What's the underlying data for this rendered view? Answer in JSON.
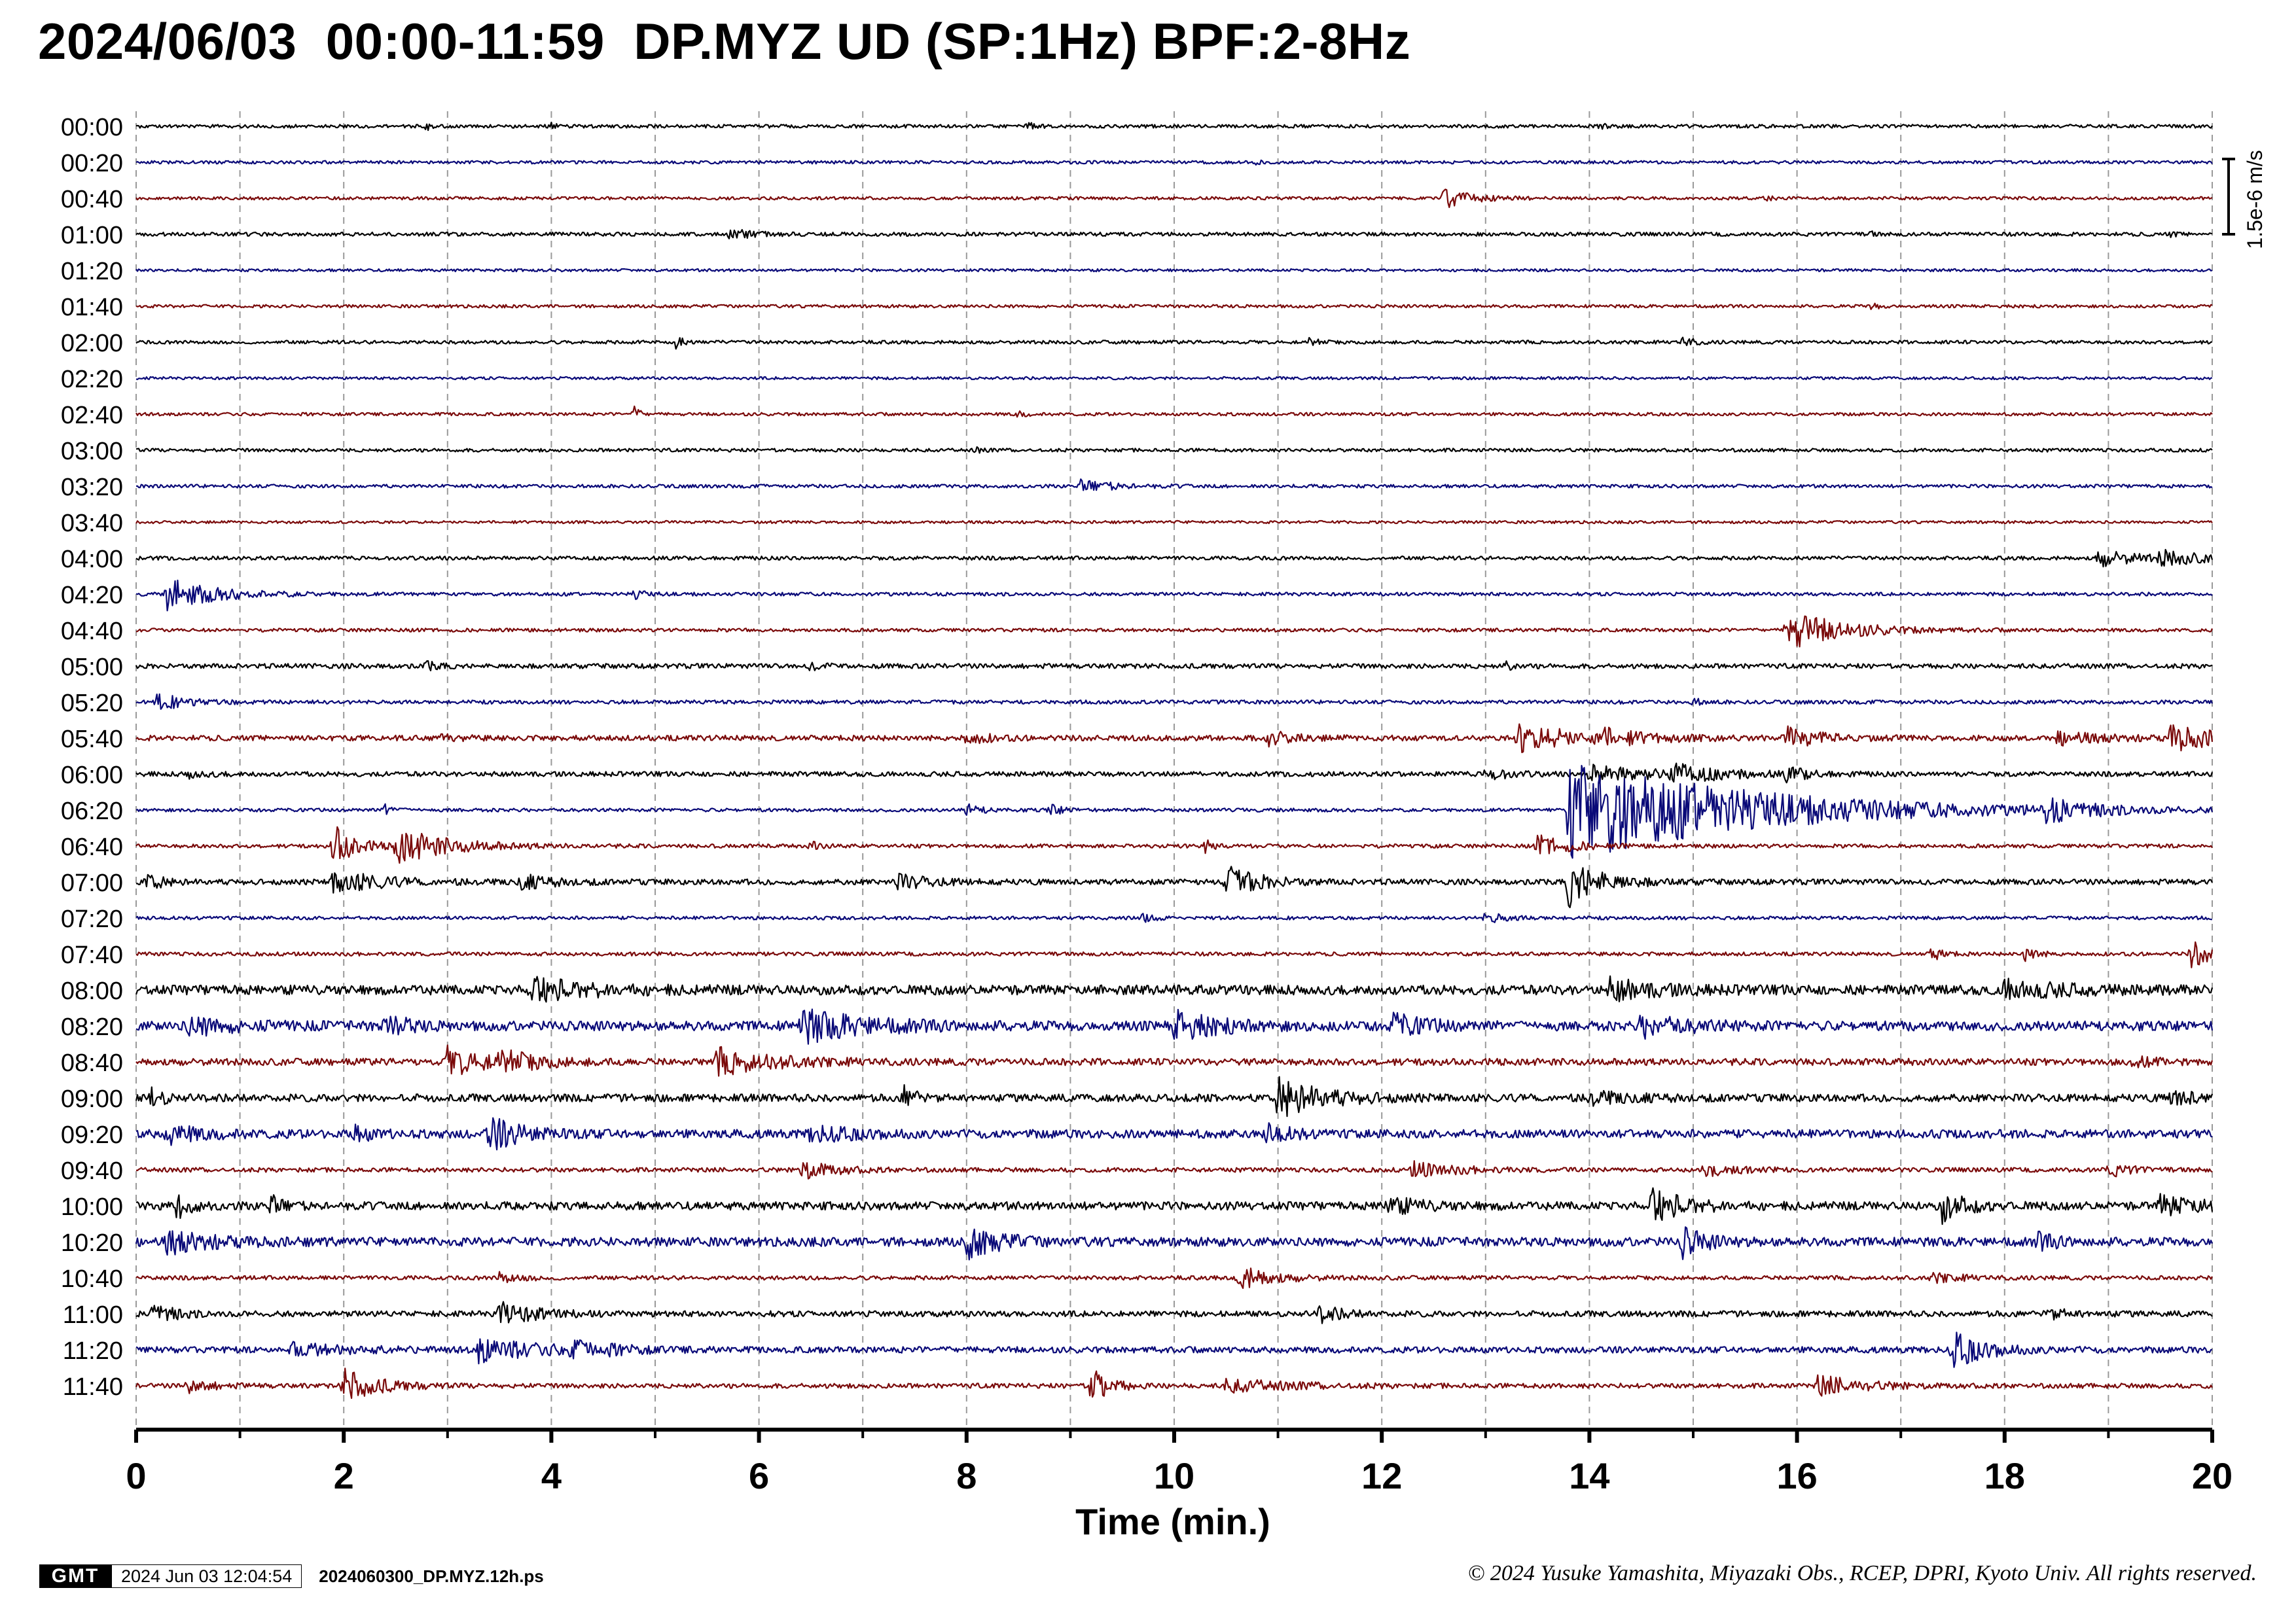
{
  "title": "2024/06/03  00:00-11:59  DP.MYZ UD (SP:1Hz) BPF:2-8Hz",
  "chart_data": {
    "type": "line",
    "title": "2024/06/03  00:00-11:59  DP.MYZ UD (SP:1Hz) BPF:2-8Hz",
    "xlabel": "Time (min.)",
    "xlim": [
      0,
      20
    ],
    "x_ticks": [
      "0",
      "2",
      "4",
      "6",
      "8",
      "10",
      "12",
      "14",
      "16",
      "18",
      "20"
    ],
    "x_minor_step": 1,
    "grid": "vertical dashed at every minute",
    "scale_bar": "1.5e-6 m/s",
    "trace_colors": [
      "#000000",
      "#0a0a78",
      "#7a0a0a"
    ],
    "rows": [
      {
        "label": "00:00",
        "noise": 0.1,
        "events": [
          {
            "t": 2.8,
            "a": 0.18,
            "d": 0.05
          },
          {
            "t": 4.0,
            "a": 0.14,
            "d": 0.05
          },
          {
            "t": 8.6,
            "a": 0.25,
            "d": 0.05
          },
          {
            "t": 14.1,
            "a": 0.16,
            "d": 0.06
          }
        ]
      },
      {
        "label": "00:20",
        "noise": 0.09,
        "events": [
          {
            "t": 10.8,
            "a": 0.12,
            "d": 0.05
          }
        ]
      },
      {
        "label": "00:40",
        "noise": 0.09,
        "events": [
          {
            "t": 12.6,
            "a": 0.55,
            "d": 0.25
          },
          {
            "t": 15.7,
            "a": 0.14,
            "d": 0.08
          }
        ]
      },
      {
        "label": "01:00",
        "noise": 0.11,
        "events": [
          {
            "t": 5.7,
            "a": 0.32,
            "d": 0.2
          },
          {
            "t": 16.7,
            "a": 0.14,
            "d": 0.05
          },
          {
            "t": 19.6,
            "a": 0.15,
            "d": 0.05
          }
        ]
      },
      {
        "label": "01:20",
        "noise": 0.08,
        "events": []
      },
      {
        "label": "01:40",
        "noise": 0.09,
        "events": [
          {
            "t": 16.7,
            "a": 0.2,
            "d": 0.08
          }
        ]
      },
      {
        "label": "02:00",
        "noise": 0.1,
        "events": [
          {
            "t": 5.2,
            "a": 0.4,
            "d": 0.06
          },
          {
            "t": 11.3,
            "a": 0.28,
            "d": 0.08
          },
          {
            "t": 14.9,
            "a": 0.3,
            "d": 0.1
          }
        ]
      },
      {
        "label": "02:20",
        "noise": 0.08,
        "events": []
      },
      {
        "label": "02:40",
        "noise": 0.09,
        "events": [
          {
            "t": 4.8,
            "a": 0.42,
            "d": 0.05
          },
          {
            "t": 8.5,
            "a": 0.2,
            "d": 0.06
          }
        ]
      },
      {
        "label": "03:00",
        "noise": 0.1,
        "events": [
          {
            "t": 8.1,
            "a": 0.15,
            "d": 0.05
          }
        ]
      },
      {
        "label": "03:20",
        "noise": 0.1,
        "events": [
          {
            "t": 9.1,
            "a": 0.35,
            "d": 0.3
          }
        ]
      },
      {
        "label": "03:40",
        "noise": 0.08,
        "events": []
      },
      {
        "label": "04:00",
        "noise": 0.11,
        "events": [
          {
            "t": 18.9,
            "a": 0.45,
            "d": 0.4
          },
          {
            "t": 19.5,
            "a": 0.38,
            "d": 0.4
          }
        ]
      },
      {
        "label": "04:20",
        "noise": 0.1,
        "events": [
          {
            "t": 0.3,
            "a": 0.9,
            "d": 0.45
          },
          {
            "t": 4.8,
            "a": 0.25,
            "d": 0.1
          }
        ]
      },
      {
        "label": "04:40",
        "noise": 0.1,
        "events": [
          {
            "t": 15.9,
            "a": 1.2,
            "d": 0.5
          }
        ]
      },
      {
        "label": "05:00",
        "noise": 0.14,
        "events": [
          {
            "t": 2.8,
            "a": 0.25,
            "d": 0.1
          },
          {
            "t": 6.5,
            "a": 0.2,
            "d": 0.1
          },
          {
            "t": 13.2,
            "a": 0.2,
            "d": 0.1
          }
        ]
      },
      {
        "label": "05:20",
        "noise": 0.11,
        "events": [
          {
            "t": 0.2,
            "a": 0.45,
            "d": 0.3
          },
          {
            "t": 15.0,
            "a": 0.18,
            "d": 0.1
          }
        ]
      },
      {
        "label": "05:40",
        "noise": 0.16,
        "events": [
          {
            "t": 2.9,
            "a": 0.25,
            "d": 0.15
          },
          {
            "t": 8.0,
            "a": 0.35,
            "d": 0.2
          },
          {
            "t": 10.9,
            "a": 0.4,
            "d": 0.25
          },
          {
            "t": 13.3,
            "a": 0.8,
            "d": 0.6
          },
          {
            "t": 14.1,
            "a": 0.4,
            "d": 0.3
          },
          {
            "t": 15.9,
            "a": 0.6,
            "d": 0.3
          },
          {
            "t": 18.5,
            "a": 0.35,
            "d": 0.4
          },
          {
            "t": 19.6,
            "a": 0.7,
            "d": 0.5
          }
        ]
      },
      {
        "label": "06:00",
        "noise": 0.14,
        "events": [
          {
            "t": 0.5,
            "a": 0.22,
            "d": 0.15
          },
          {
            "t": 13.0,
            "a": 0.35,
            "d": 0.2
          },
          {
            "t": 14.0,
            "a": 0.5,
            "d": 0.6
          },
          {
            "t": 14.8,
            "a": 0.5,
            "d": 0.4
          },
          {
            "t": 15.9,
            "a": 0.35,
            "d": 0.2
          }
        ]
      },
      {
        "label": "06:20",
        "noise": 0.1,
        "events": [
          {
            "t": 2.4,
            "a": 0.45,
            "d": 0.06
          },
          {
            "t": 8.0,
            "a": 0.3,
            "d": 0.15
          },
          {
            "t": 8.8,
            "a": 0.35,
            "d": 0.1
          },
          {
            "t": 13.8,
            "a": 3.2,
            "d": 1.6
          },
          {
            "t": 18.4,
            "a": 0.6,
            "d": 0.4
          }
        ]
      },
      {
        "label": "06:40",
        "noise": 0.11,
        "events": [
          {
            "t": 1.9,
            "a": 1.3,
            "d": 0.2
          },
          {
            "t": 2.5,
            "a": 1.0,
            "d": 0.5
          },
          {
            "t": 6.5,
            "a": 0.25,
            "d": 0.1
          },
          {
            "t": 10.3,
            "a": 0.35,
            "d": 0.1
          },
          {
            "t": 13.5,
            "a": 0.6,
            "d": 0.3
          }
        ]
      },
      {
        "label": "07:00",
        "noise": 0.16,
        "events": [
          {
            "t": 0.1,
            "a": 0.5,
            "d": 0.15
          },
          {
            "t": 1.9,
            "a": 0.7,
            "d": 0.4
          },
          {
            "t": 3.7,
            "a": 0.4,
            "d": 0.3
          },
          {
            "t": 7.3,
            "a": 0.45,
            "d": 0.3
          },
          {
            "t": 10.5,
            "a": 0.9,
            "d": 0.3
          },
          {
            "t": 13.8,
            "a": 1.4,
            "d": 0.3
          }
        ]
      },
      {
        "label": "07:20",
        "noise": 0.1,
        "events": [
          {
            "t": 9.7,
            "a": 0.2,
            "d": 0.1
          },
          {
            "t": 13.0,
            "a": 0.3,
            "d": 0.2
          }
        ]
      },
      {
        "label": "07:40",
        "noise": 0.11,
        "events": [
          {
            "t": 17.3,
            "a": 0.45,
            "d": 0.1
          },
          {
            "t": 18.2,
            "a": 0.5,
            "d": 0.1
          },
          {
            "t": 19.8,
            "a": 0.8,
            "d": 0.2
          }
        ]
      },
      {
        "label": "08:00",
        "noise": 0.28,
        "events": [
          {
            "t": 3.8,
            "a": 0.7,
            "d": 0.5
          },
          {
            "t": 14.2,
            "a": 0.55,
            "d": 0.4
          },
          {
            "t": 18.0,
            "a": 0.5,
            "d": 0.5
          }
        ]
      },
      {
        "label": "08:20",
        "noise": 0.28,
        "events": [
          {
            "t": 0.5,
            "a": 0.5,
            "d": 0.4
          },
          {
            "t": 2.4,
            "a": 0.6,
            "d": 0.2
          },
          {
            "t": 6.4,
            "a": 0.9,
            "d": 0.6
          },
          {
            "t": 10.0,
            "a": 0.8,
            "d": 0.4
          },
          {
            "t": 12.1,
            "a": 0.65,
            "d": 0.3
          },
          {
            "t": 14.5,
            "a": 0.6,
            "d": 0.4
          }
        ]
      },
      {
        "label": "08:40",
        "noise": 0.2,
        "events": [
          {
            "t": 3.0,
            "a": 0.8,
            "d": 0.4
          },
          {
            "t": 3.5,
            "a": 0.6,
            "d": 0.3
          },
          {
            "t": 5.6,
            "a": 0.75,
            "d": 0.5
          },
          {
            "t": 19.2,
            "a": 0.3,
            "d": 0.2
          }
        ]
      },
      {
        "label": "09:00",
        "noise": 0.22,
        "events": [
          {
            "t": 0.15,
            "a": 0.7,
            "d": 0.1
          },
          {
            "t": 7.4,
            "a": 0.7,
            "d": 0.1
          },
          {
            "t": 11.0,
            "a": 1.2,
            "d": 0.4
          },
          {
            "t": 14.0,
            "a": 0.3,
            "d": 0.4
          },
          {
            "t": 19.6,
            "a": 0.4,
            "d": 0.3
          }
        ]
      },
      {
        "label": "09:20",
        "noise": 0.25,
        "events": [
          {
            "t": 0.3,
            "a": 0.5,
            "d": 0.3
          },
          {
            "t": 2.1,
            "a": 0.45,
            "d": 0.15
          },
          {
            "t": 3.4,
            "a": 0.9,
            "d": 0.3
          },
          {
            "t": 6.5,
            "a": 0.4,
            "d": 0.4
          },
          {
            "t": 10.9,
            "a": 0.5,
            "d": 0.2
          }
        ]
      },
      {
        "label": "09:40",
        "noise": 0.13,
        "events": [
          {
            "t": 6.4,
            "a": 0.55,
            "d": 0.3
          },
          {
            "t": 12.3,
            "a": 0.45,
            "d": 0.4
          },
          {
            "t": 15.1,
            "a": 0.35,
            "d": 0.3
          },
          {
            "t": 19.0,
            "a": 0.4,
            "d": 0.2
          }
        ]
      },
      {
        "label": "10:00",
        "noise": 0.24,
        "events": [
          {
            "t": 0.4,
            "a": 0.8,
            "d": 0.1
          },
          {
            "t": 1.3,
            "a": 0.6,
            "d": 0.1
          },
          {
            "t": 12.0,
            "a": 0.55,
            "d": 0.3
          },
          {
            "t": 14.6,
            "a": 1.0,
            "d": 0.3
          },
          {
            "t": 17.4,
            "a": 0.9,
            "d": 0.2
          },
          {
            "t": 19.5,
            "a": 0.5,
            "d": 0.5
          }
        ]
      },
      {
        "label": "10:20",
        "noise": 0.26,
        "events": [
          {
            "t": 0.3,
            "a": 0.6,
            "d": 0.4
          },
          {
            "t": 8.0,
            "a": 0.9,
            "d": 0.3
          },
          {
            "t": 14.9,
            "a": 0.8,
            "d": 0.2
          },
          {
            "t": 18.3,
            "a": 0.45,
            "d": 0.2
          }
        ]
      },
      {
        "label": "10:40",
        "noise": 0.12,
        "events": [
          {
            "t": 3.5,
            "a": 0.3,
            "d": 0.2
          },
          {
            "t": 10.6,
            "a": 0.75,
            "d": 0.3
          },
          {
            "t": 17.3,
            "a": 0.25,
            "d": 0.3
          }
        ]
      },
      {
        "label": "11:00",
        "noise": 0.17,
        "events": [
          {
            "t": 0.15,
            "a": 0.6,
            "d": 0.2
          },
          {
            "t": 3.5,
            "a": 0.7,
            "d": 0.3
          },
          {
            "t": 11.4,
            "a": 0.45,
            "d": 0.2
          },
          {
            "t": 18.4,
            "a": 0.3,
            "d": 0.2
          }
        ]
      },
      {
        "label": "11:20",
        "noise": 0.18,
        "events": [
          {
            "t": 1.5,
            "a": 0.35,
            "d": 0.5
          },
          {
            "t": 3.3,
            "a": 0.7,
            "d": 0.5
          },
          {
            "t": 4.2,
            "a": 0.6,
            "d": 0.3
          },
          {
            "t": 17.5,
            "a": 1.0,
            "d": 0.3
          }
        ]
      },
      {
        "label": "11:40",
        "noise": 0.14,
        "events": [
          {
            "t": 0.5,
            "a": 0.4,
            "d": 0.2
          },
          {
            "t": 2.0,
            "a": 1.0,
            "d": 0.3
          },
          {
            "t": 9.2,
            "a": 1.3,
            "d": 0.15
          },
          {
            "t": 10.5,
            "a": 0.35,
            "d": 0.6
          },
          {
            "t": 16.2,
            "a": 0.6,
            "d": 0.4
          }
        ]
      }
    ]
  },
  "footer": {
    "logo": "GMT",
    "timestamp": "2024 Jun 03 12:04:54",
    "filename": "2024060300_DP.MYZ.12h.ps",
    "copyright": "© 2024 Yusuke Yamashita, Miyazaki Obs., RCEP, DPRI, Kyoto Univ. All rights reserved."
  }
}
